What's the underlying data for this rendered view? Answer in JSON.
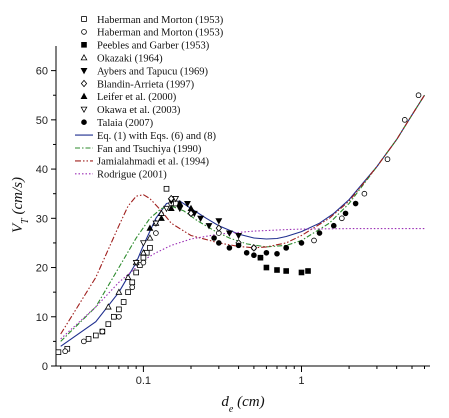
{
  "chart_data": {
    "type": "scatter",
    "xscale": "log",
    "xlim": [
      0.028,
      6.5
    ],
    "ylim": [
      0,
      65
    ],
    "xticks": [
      0.1,
      1
    ],
    "xtick_labels": [
      "0.1",
      "1"
    ],
    "yticks": [
      0,
      10,
      20,
      30,
      40,
      50,
      60
    ],
    "ytick_labels": [
      "0",
      "10",
      "20",
      "30",
      "40",
      "50",
      "60"
    ],
    "ylabel_main": "V",
    "ylabel_sub": "T",
    "ylabel_units": " (cm/s)",
    "xlabel_main": "d",
    "xlabel_sub": "e",
    "xlabel_units": " (cm)",
    "grid": false,
    "legend_position": "top-left",
    "series": [
      {
        "name": "Haberman and Morton (1953)",
        "kind": "points",
        "marker": "square-open",
        "x": [
          0.029,
          0.033,
          0.045,
          0.05,
          0.055,
          0.06,
          0.065,
          0.07,
          0.075,
          0.08,
          0.085,
          0.09,
          0.095,
          0.1,
          0.105,
          0.11,
          0.14,
          0.16
        ],
        "y": [
          2.8,
          3.5,
          5.5,
          6.2,
          7.0,
          8.5,
          10.0,
          11.5,
          13.0,
          15.0,
          17.0,
          19.0,
          20.5,
          22.0,
          23.0,
          24.0,
          36.0,
          33.0
        ]
      },
      {
        "name": "Haberman and Morton (1953)",
        "kind": "points",
        "marker": "circle-open",
        "x": [
          0.032,
          0.042,
          0.055,
          0.07,
          0.085,
          0.1,
          0.12,
          0.15,
          0.2,
          0.3,
          0.5,
          0.8,
          1.2,
          1.8,
          2.5,
          3.5,
          4.5,
          5.5
        ],
        "y": [
          3.0,
          5.0,
          7.0,
          10.0,
          16.0,
          21.0,
          27.0,
          33.0,
          31.0,
          27.0,
          24.0,
          24.0,
          25.5,
          30.0,
          35.0,
          42.0,
          50.0,
          55.0
        ]
      },
      {
        "name": "Peebles and Garber (1953)",
        "kind": "points",
        "marker": "square-filled",
        "x": [
          0.55,
          0.6,
          0.7,
          0.8,
          1.0,
          1.1
        ],
        "y": [
          22.0,
          20.0,
          19.5,
          19.3,
          19.0,
          19.3
        ]
      },
      {
        "name": "Okazaki (1964)",
        "kind": "points",
        "marker": "triangle-up-open",
        "x": [
          0.06,
          0.07,
          0.08,
          0.09,
          0.1,
          0.11,
          0.12,
          0.13
        ],
        "y": [
          12.0,
          15.0,
          18.0,
          21.0,
          23.0,
          26.0,
          29.0,
          31.0
        ]
      },
      {
        "name": "Aybers and Tapucu (1969)",
        "kind": "points",
        "marker": "triangle-down-filled",
        "x": [
          0.15,
          0.17,
          0.19,
          0.21,
          0.23,
          0.26,
          0.3,
          0.35,
          0.4
        ],
        "y": [
          33.5,
          32.0,
          33.0,
          31.0,
          30.0,
          28.5,
          29.5,
          27.0,
          26.5
        ]
      },
      {
        "name": "Blandin-Arrieta (1997)",
        "kind": "points",
        "marker": "diamond-open",
        "x": [
          0.15,
          0.2,
          0.3,
          0.4,
          0.5
        ],
        "y": [
          34.0,
          31.0,
          28.0,
          25.0,
          24.0
        ]
      },
      {
        "name": "Leifer et al. (2000)",
        "kind": "points",
        "marker": "triangle-up-filled",
        "x": [
          0.11,
          0.13,
          0.15,
          0.17,
          0.2
        ],
        "y": [
          28.0,
          30.0,
          32.0,
          33.0,
          32.0
        ]
      },
      {
        "name": "Okawa et al. (2003)",
        "kind": "points",
        "marker": "triangle-down-open",
        "x": [
          0.09,
          0.1,
          0.12,
          0.14,
          0.16
        ],
        "y": [
          21.0,
          25.0,
          29.0,
          32.0,
          34.0
        ]
      },
      {
        "name": "Talaia (2007)",
        "kind": "points",
        "marker": "circle-filled",
        "x": [
          0.28,
          0.3,
          0.35,
          0.4,
          0.45,
          0.5,
          0.55,
          0.6,
          0.7,
          0.8,
          1.0,
          1.3,
          1.6,
          1.9,
          2.2
        ],
        "y": [
          26.0,
          25.0,
          24.0,
          24.5,
          23.0,
          22.5,
          22.0,
          23.0,
          22.8,
          24.0,
          25.0,
          27.0,
          28.5,
          31.0,
          33.0
        ]
      },
      {
        "name": "Eq. (1) with Eqs. (6) and (8)",
        "kind": "line",
        "color": "#1f2f8f",
        "dash": "",
        "x": [
          0.03,
          0.05,
          0.07,
          0.09,
          0.1,
          0.12,
          0.14,
          0.17,
          0.2,
          0.25,
          0.3,
          0.4,
          0.5,
          0.6,
          0.7,
          0.8,
          1.0,
          1.3,
          1.6,
          2.0,
          2.5,
          3.0,
          4.0,
          5.0,
          6.0
        ],
        "y": [
          4.0,
          9.0,
          15.0,
          21.0,
          24.5,
          30.0,
          33.0,
          33.5,
          32.0,
          30.0,
          28.5,
          26.8,
          26.0,
          25.8,
          25.9,
          26.3,
          27.3,
          29.0,
          31.0,
          33.8,
          37.5,
          40.5,
          46.0,
          51.0,
          55.0
        ]
      },
      {
        "name": "Fan and Tsuchiya (1990)",
        "kind": "line",
        "color": "#2e8b2e",
        "dash": "5,2,1.5,2",
        "x": [
          0.03,
          0.05,
          0.07,
          0.09,
          0.11,
          0.13,
          0.15,
          0.18,
          0.22,
          0.28,
          0.35,
          0.45,
          0.6,
          0.8,
          1.0,
          1.5,
          2.0,
          3.0,
          4.0,
          5.0,
          6.0
        ],
        "y": [
          5.0,
          12.0,
          20.0,
          26.0,
          30.0,
          32.0,
          32.5,
          31.5,
          29.5,
          27.5,
          26.0,
          24.8,
          24.2,
          24.5,
          25.5,
          29.0,
          33.0,
          40.5,
          46.0,
          51.0,
          55.0
        ]
      },
      {
        "name": "Jamialahmadi et al. (1994)",
        "kind": "line",
        "color": "#a0201e",
        "dash": "6,2,1.5,2,1.5,2",
        "x": [
          0.03,
          0.05,
          0.07,
          0.08,
          0.09,
          0.1,
          0.11,
          0.13,
          0.15,
          0.2,
          0.3,
          0.4,
          0.5,
          0.6,
          0.8,
          1.0,
          1.5,
          2.0,
          3.0,
          4.0,
          5.0,
          6.0
        ],
        "y": [
          6.5,
          18.0,
          28.5,
          32.5,
          34.5,
          34.8,
          34.0,
          31.5,
          29.0,
          26.5,
          25.0,
          24.3,
          24.0,
          24.2,
          25.0,
          26.5,
          30.0,
          33.5,
          40.5,
          46.0,
          51.0,
          55.0
        ]
      },
      {
        "name": "Rodrigue (2001)",
        "kind": "line",
        "color": "#9b2fb5",
        "dash": "1.5,2",
        "x": [
          0.03,
          0.05,
          0.07,
          0.09,
          0.1,
          0.12,
          0.15,
          0.2,
          0.3,
          0.5,
          0.8,
          1.0,
          2.0,
          4.0,
          6.0
        ],
        "y": [
          5.5,
          12.0,
          17.0,
          20.0,
          21.5,
          23.0,
          24.5,
          25.8,
          26.8,
          27.4,
          27.7,
          27.8,
          27.9,
          27.9,
          27.9
        ]
      }
    ]
  }
}
